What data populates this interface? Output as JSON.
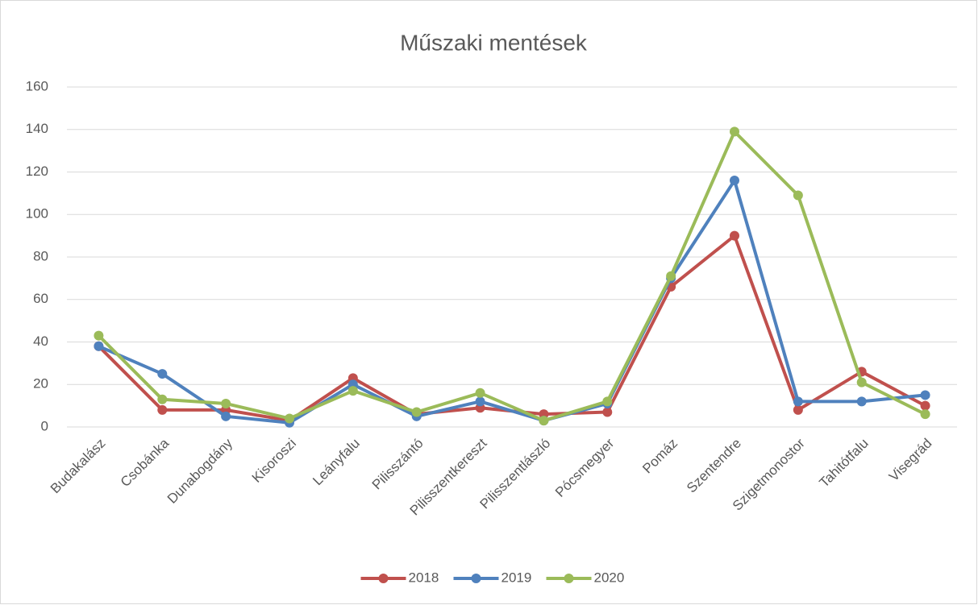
{
  "chart_data": {
    "type": "line",
    "title": "Műszaki mentések",
    "categories": [
      "Budakalász",
      "Csobánka",
      "Dunabogdány",
      "Kisoroszi",
      "Leányfalu",
      "Pilisszántó",
      "Pilisszentkereszt",
      "Pilisszentlászló",
      "Pócsmegyer",
      "Pomáz",
      "Szentendre",
      "Szigetmonostor",
      "Tahitótfalu",
      "Visegrád"
    ],
    "series": [
      {
        "name": "2018",
        "color": "#c0504d",
        "values": [
          38,
          8,
          8,
          3,
          23,
          6,
          9,
          6,
          7,
          66,
          90,
          8,
          26,
          10
        ]
      },
      {
        "name": "2019",
        "color": "#4f81bd",
        "values": [
          38,
          25,
          5,
          2,
          20,
          5,
          12,
          3,
          11,
          70,
          116,
          12,
          12,
          15
        ]
      },
      {
        "name": "2020",
        "color": "#9bbb59",
        "values": [
          43,
          13,
          11,
          4,
          17,
          7,
          16,
          3,
          12,
          71,
          139,
          109,
          21,
          6
        ]
      }
    ],
    "ylim": [
      0,
      160
    ],
    "yticks": [
      0,
      20,
      40,
      60,
      80,
      100,
      120,
      140,
      160
    ],
    "grid": true,
    "legend": "bottom"
  }
}
